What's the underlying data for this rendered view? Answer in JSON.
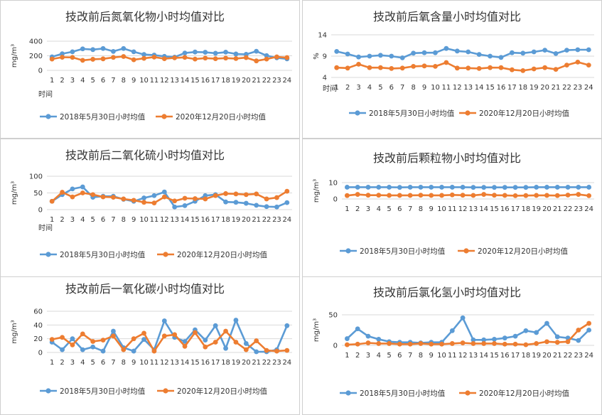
{
  "chart_data": [
    {
      "type": "line",
      "title": "技改前后氮氧化物小时均值对比",
      "ylabel": "mg/m³",
      "xlabel": "时间",
      "ylim": [
        0,
        400
      ],
      "yticks": [
        "0",
        "200",
        "400"
      ],
      "categories": [
        "1",
        "2",
        "3",
        "4",
        "5",
        "6",
        "7",
        "8",
        "9",
        "10",
        "11",
        "12",
        "13",
        "14",
        "15",
        "16",
        "17",
        "18",
        "19",
        "20",
        "21",
        "22",
        "23",
        "24"
      ],
      "grid": true,
      "legend_position": "bottom",
      "series": [
        {
          "name": "2018年5月30日小时均值",
          "color": "#5B9BD5",
          "values": [
            185,
            228,
            255,
            295,
            285,
            300,
            260,
            300,
            255,
            218,
            210,
            192,
            182,
            238,
            252,
            248,
            235,
            250,
            225,
            220,
            262,
            202,
            172,
            158
          ]
        },
        {
          "name": "2020年12月20日小时均值",
          "color": "#ED7D31",
          "values": [
            155,
            180,
            178,
            138,
            152,
            158,
            178,
            190,
            145,
            165,
            182,
            160,
            172,
            178,
            155,
            168,
            160,
            168,
            162,
            175,
            130,
            155,
            185,
            175
          ]
        }
      ]
    },
    {
      "type": "line",
      "title": "技改前后氧含量小时均值对比",
      "ylabel": "%",
      "xlabel": "时间",
      "ylim": [
        4,
        14
      ],
      "yticks": [
        "4",
        "9",
        "14"
      ],
      "categories": [
        "1",
        "2",
        "3",
        "4",
        "5",
        "6",
        "7",
        "8",
        "9",
        "10",
        "11",
        "12",
        "13",
        "14",
        "15",
        "16",
        "17",
        "18",
        "19",
        "20",
        "21",
        "22",
        "23",
        "24"
      ],
      "grid": true,
      "legend_position": "bottom",
      "series": [
        {
          "name": "2018年5月30日小时均值",
          "color": "#5B9BD5",
          "values": [
            10.1,
            9.5,
            8.8,
            9.0,
            9.2,
            9.0,
            8.6,
            9.7,
            9.8,
            9.8,
            10.8,
            10.2,
            10.0,
            9.4,
            9.0,
            8.7,
            9.8,
            9.7,
            10.0,
            10.4,
            9.6,
            10.4,
            10.5,
            10.5
          ]
        },
        {
          "name": "2020年12月20日小时均值",
          "color": "#ED7D31",
          "values": [
            6.3,
            6.2,
            7.1,
            6.3,
            6.3,
            6.1,
            6.2,
            6.6,
            6.7,
            6.6,
            7.5,
            6.2,
            6.2,
            6.1,
            6.3,
            6.3,
            5.8,
            5.6,
            6.0,
            6.3,
            5.9,
            6.9,
            7.6,
            6.9
          ]
        }
      ]
    },
    {
      "type": "line",
      "title": "技改前后二氧化硫小时均值对比",
      "ylabel": "mg/m³",
      "xlabel": "时间",
      "ylim": [
        0,
        100
      ],
      "yticks": [
        "0",
        "50",
        "100"
      ],
      "categories": [
        "1",
        "2",
        "3",
        "4",
        "5",
        "6",
        "7",
        "8",
        "9",
        "10",
        "11",
        "12",
        "13",
        "14",
        "15",
        "16",
        "17",
        "18",
        "19",
        "20",
        "21",
        "22",
        "23",
        "24"
      ],
      "grid": true,
      "legend_position": "bottom",
      "series": [
        {
          "name": "2018年5月30日小时均值",
          "color": "#5B9BD5",
          "values": [
            25,
            45,
            62,
            68,
            37,
            40,
            40,
            31,
            25,
            35,
            42,
            53,
            8,
            12,
            25,
            42,
            45,
            23,
            22,
            19,
            13,
            9,
            8,
            21
          ]
        },
        {
          "name": "2020年12月20日小时均值",
          "color": "#ED7D31",
          "values": [
            25,
            52,
            38,
            50,
            45,
            38,
            37,
            32,
            28,
            22,
            20,
            38,
            26,
            34,
            33,
            32,
            42,
            48,
            47,
            45,
            47,
            32,
            36,
            55
          ]
        }
      ]
    },
    {
      "type": "line",
      "title": "技改前后颗粒物小时均值对比",
      "ylabel": "mg/m³",
      "xlabel": "",
      "ylim": [
        0,
        10
      ],
      "yticks": [
        "0",
        "10"
      ],
      "categories": [
        "1",
        "2",
        "3",
        "4",
        "5",
        "6",
        "7",
        "8",
        "9",
        "10",
        "11",
        "12",
        "13",
        "14",
        "15",
        "16",
        "17",
        "18",
        "19",
        "20",
        "21",
        "22",
        "23",
        "24"
      ],
      "grid": true,
      "legend_position": "bottom",
      "series": [
        {
          "name": "2018年5月30日小时均值",
          "color": "#5B9BD5",
          "values": [
            7.2,
            7.2,
            7.2,
            7.2,
            7.2,
            7.1,
            7.2,
            7.2,
            7.2,
            7.2,
            7.2,
            7.2,
            7.1,
            7.1,
            7.1,
            7.1,
            7.1,
            7.1,
            7.2,
            7.2,
            7.2,
            7.2,
            7.2,
            7.2
          ]
        },
        {
          "name": "2020年12月20日小时均值",
          "color": "#ED7D31",
          "values": [
            2.1,
            2.8,
            2.3,
            2.3,
            2.2,
            2.2,
            2.2,
            2.3,
            2.2,
            2.2,
            2.5,
            2.3,
            2.2,
            2.8,
            2.3,
            2.2,
            2.0,
            2.1,
            2.2,
            2.2,
            2.1,
            2.4,
            2.8,
            2.0
          ]
        }
      ]
    },
    {
      "type": "line",
      "title": "技改前后一氧化碳小时均值对比",
      "ylabel": "mg/m³",
      "xlabel": "",
      "ylim": [
        0,
        60
      ],
      "yticks": [
        "0",
        "20",
        "40",
        "60"
      ],
      "categories": [
        "1",
        "2",
        "3",
        "4",
        "5",
        "6",
        "7",
        "8",
        "9",
        "10",
        "11",
        "12",
        "13",
        "14",
        "15",
        "16",
        "17",
        "18",
        "19",
        "20",
        "21",
        "22",
        "23",
        "24"
      ],
      "grid": true,
      "legend_position": "bottom",
      "series": [
        {
          "name": "2018年5月30日小时均值",
          "color": "#5B9BD5",
          "values": [
            15,
            4,
            20,
            4,
            8,
            2,
            31,
            7,
            2,
            19,
            4,
            46,
            22,
            16,
            33,
            18,
            39,
            6,
            47,
            13,
            1,
            1,
            4,
            39
          ]
        },
        {
          "name": "2020年12月20日小时均值",
          "color": "#ED7D31",
          "values": [
            19,
            22,
            11,
            27,
            16,
            18,
            24,
            4,
            20,
            28,
            2,
            24,
            26,
            9,
            29,
            8,
            15,
            31,
            15,
            4,
            17,
            3,
            2,
            3
          ]
        }
      ]
    },
    {
      "type": "line",
      "title": "技改前后氯化氢小时均值对比",
      "ylabel": "mg/m³",
      "xlabel": "",
      "ylim": [
        0,
        50
      ],
      "yticks": [
        "0",
        "50"
      ],
      "categories": [
        "1",
        "2",
        "3",
        "4",
        "5",
        "6",
        "7",
        "8",
        "9",
        "10",
        "11",
        "12",
        "13",
        "14",
        "15",
        "16",
        "17",
        "18",
        "19",
        "20",
        "21",
        "22",
        "23",
        "24"
      ],
      "grid": true,
      "legend_position": "bottom",
      "series": [
        {
          "name": "2018年5月30日小时均值",
          "color": "#5B9BD5",
          "values": [
            11,
            27,
            15,
            10,
            6,
            5,
            5,
            4,
            5,
            5,
            24,
            45,
            9,
            9,
            10,
            12,
            15,
            24,
            21,
            36,
            14,
            12,
            8,
            25
          ]
        },
        {
          "name": "2020年12月20日小时均值",
          "color": "#ED7D31",
          "values": [
            1,
            2,
            4,
            3,
            3,
            2,
            2,
            3,
            2,
            2,
            3,
            4,
            3,
            3,
            3,
            2,
            2,
            1,
            3,
            6,
            5,
            6,
            25,
            36
          ]
        }
      ]
    }
  ]
}
